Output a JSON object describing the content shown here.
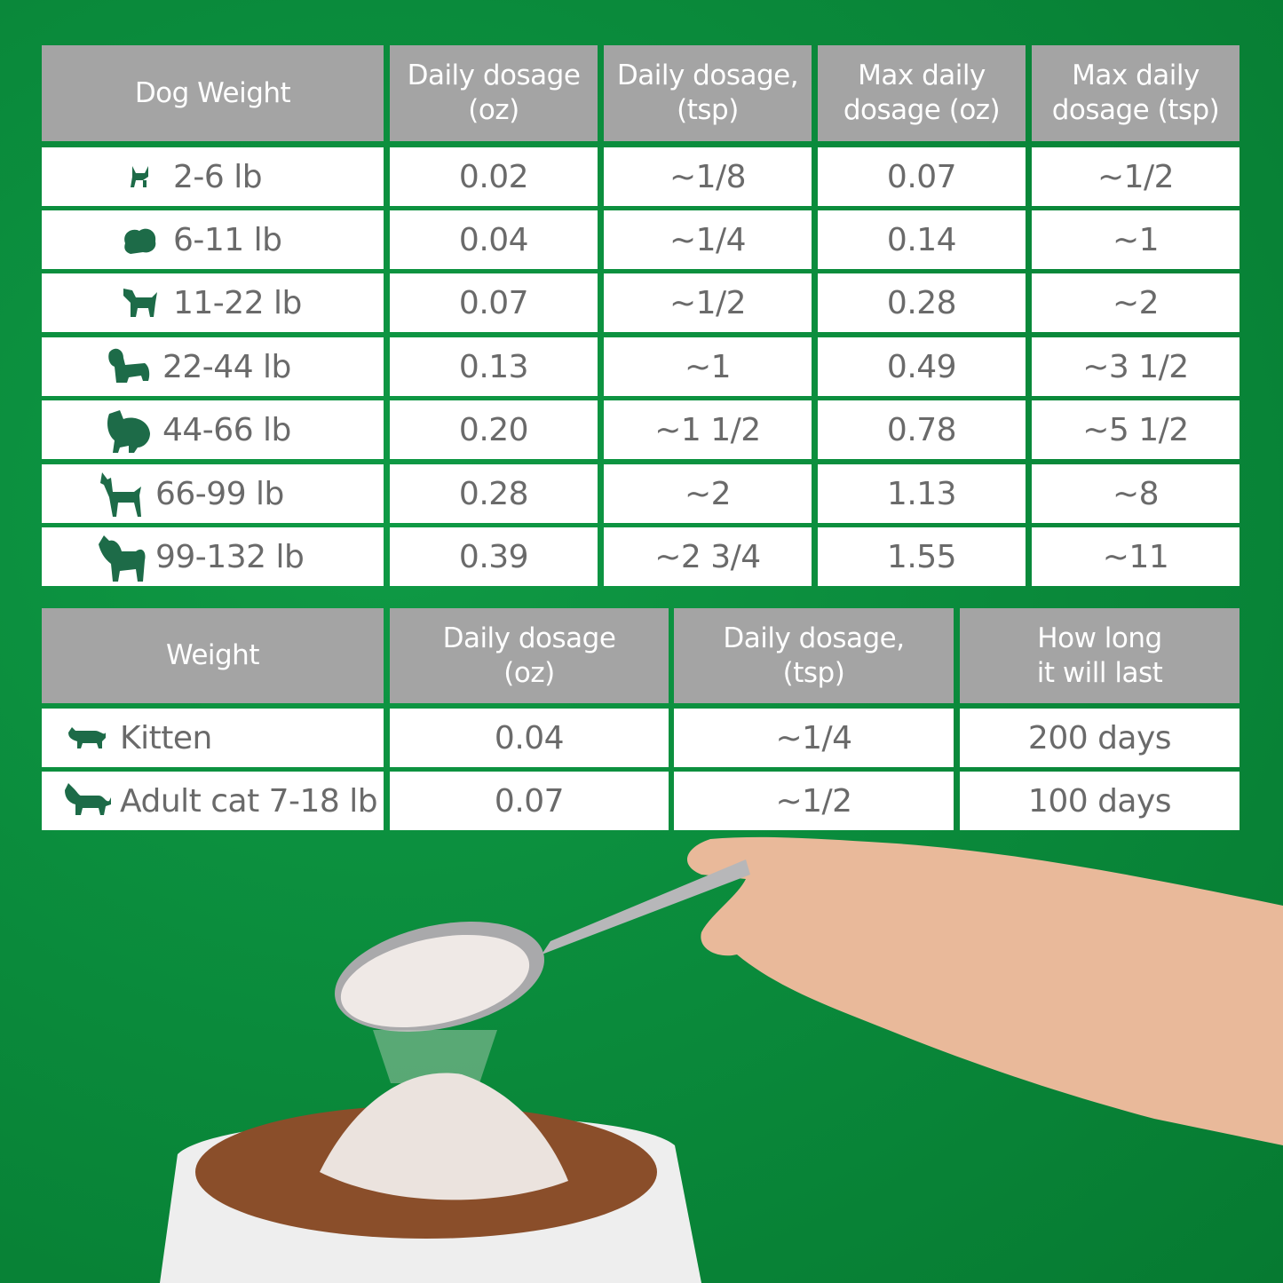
{
  "colors": {
    "background": "#0a8a3b",
    "header": "#a4a4a4",
    "icon": "#1d6b48",
    "text": "#6a6a6a"
  },
  "dog_table": {
    "headers": [
      "Dog Weight",
      "Daily dosage\n(oz)",
      "Daily dosage,\n(tsp)",
      "Max daily\ndosage (oz)",
      "Max daily\ndosage (tsp)"
    ],
    "rows": [
      {
        "icon": "chihuahua-icon",
        "weight": "2-6 lb",
        "daily_oz": "0.02",
        "daily_tsp": "~1/8",
        "max_oz": "0.07",
        "max_tsp": "~1/2"
      },
      {
        "icon": "pomeranian-icon",
        "weight": "6-11 lb",
        "daily_oz": "0.04",
        "daily_tsp": "~1/4",
        "max_oz": "0.14",
        "max_tsp": "~1"
      },
      {
        "icon": "terrier-icon",
        "weight": "11-22 lb",
        "daily_oz": "0.07",
        "daily_tsp": "~1/2",
        "max_oz": "0.28",
        "max_tsp": "~2"
      },
      {
        "icon": "spaniel-icon",
        "weight": "22-44 lb",
        "daily_oz": "0.13",
        "daily_tsp": "~1",
        "max_oz": "0.49",
        "max_tsp": "~3 1/2"
      },
      {
        "icon": "chow-icon",
        "weight": "44-66 lb",
        "daily_oz": "0.20",
        "daily_tsp": "~1 1/2",
        "max_oz": "0.78",
        "max_tsp": "~5 1/2"
      },
      {
        "icon": "doberman-icon",
        "weight": "66-99 lb",
        "daily_oz": "0.28",
        "daily_tsp": "~2",
        "max_oz": "1.13",
        "max_tsp": "~8"
      },
      {
        "icon": "akita-icon",
        "weight": "99-132 lb",
        "daily_oz": "0.39",
        "daily_tsp": "~2 3/4",
        "max_oz": "1.55",
        "max_tsp": "~11"
      }
    ]
  },
  "cat_table": {
    "headers": [
      "Weight",
      "Daily dosage\n(oz)",
      "Daily dosage,\n(tsp)",
      "How long\nit will last"
    ],
    "rows": [
      {
        "icon": "kitten-icon",
        "weight": "Kitten",
        "daily_oz": "0.04",
        "daily_tsp": "~1/4",
        "duration": "200 days"
      },
      {
        "icon": "cat-icon",
        "weight": "Adult cat 7-18 lb",
        "daily_oz": "0.07",
        "daily_tsp": "~1/2",
        "duration": "100 days"
      }
    ]
  }
}
